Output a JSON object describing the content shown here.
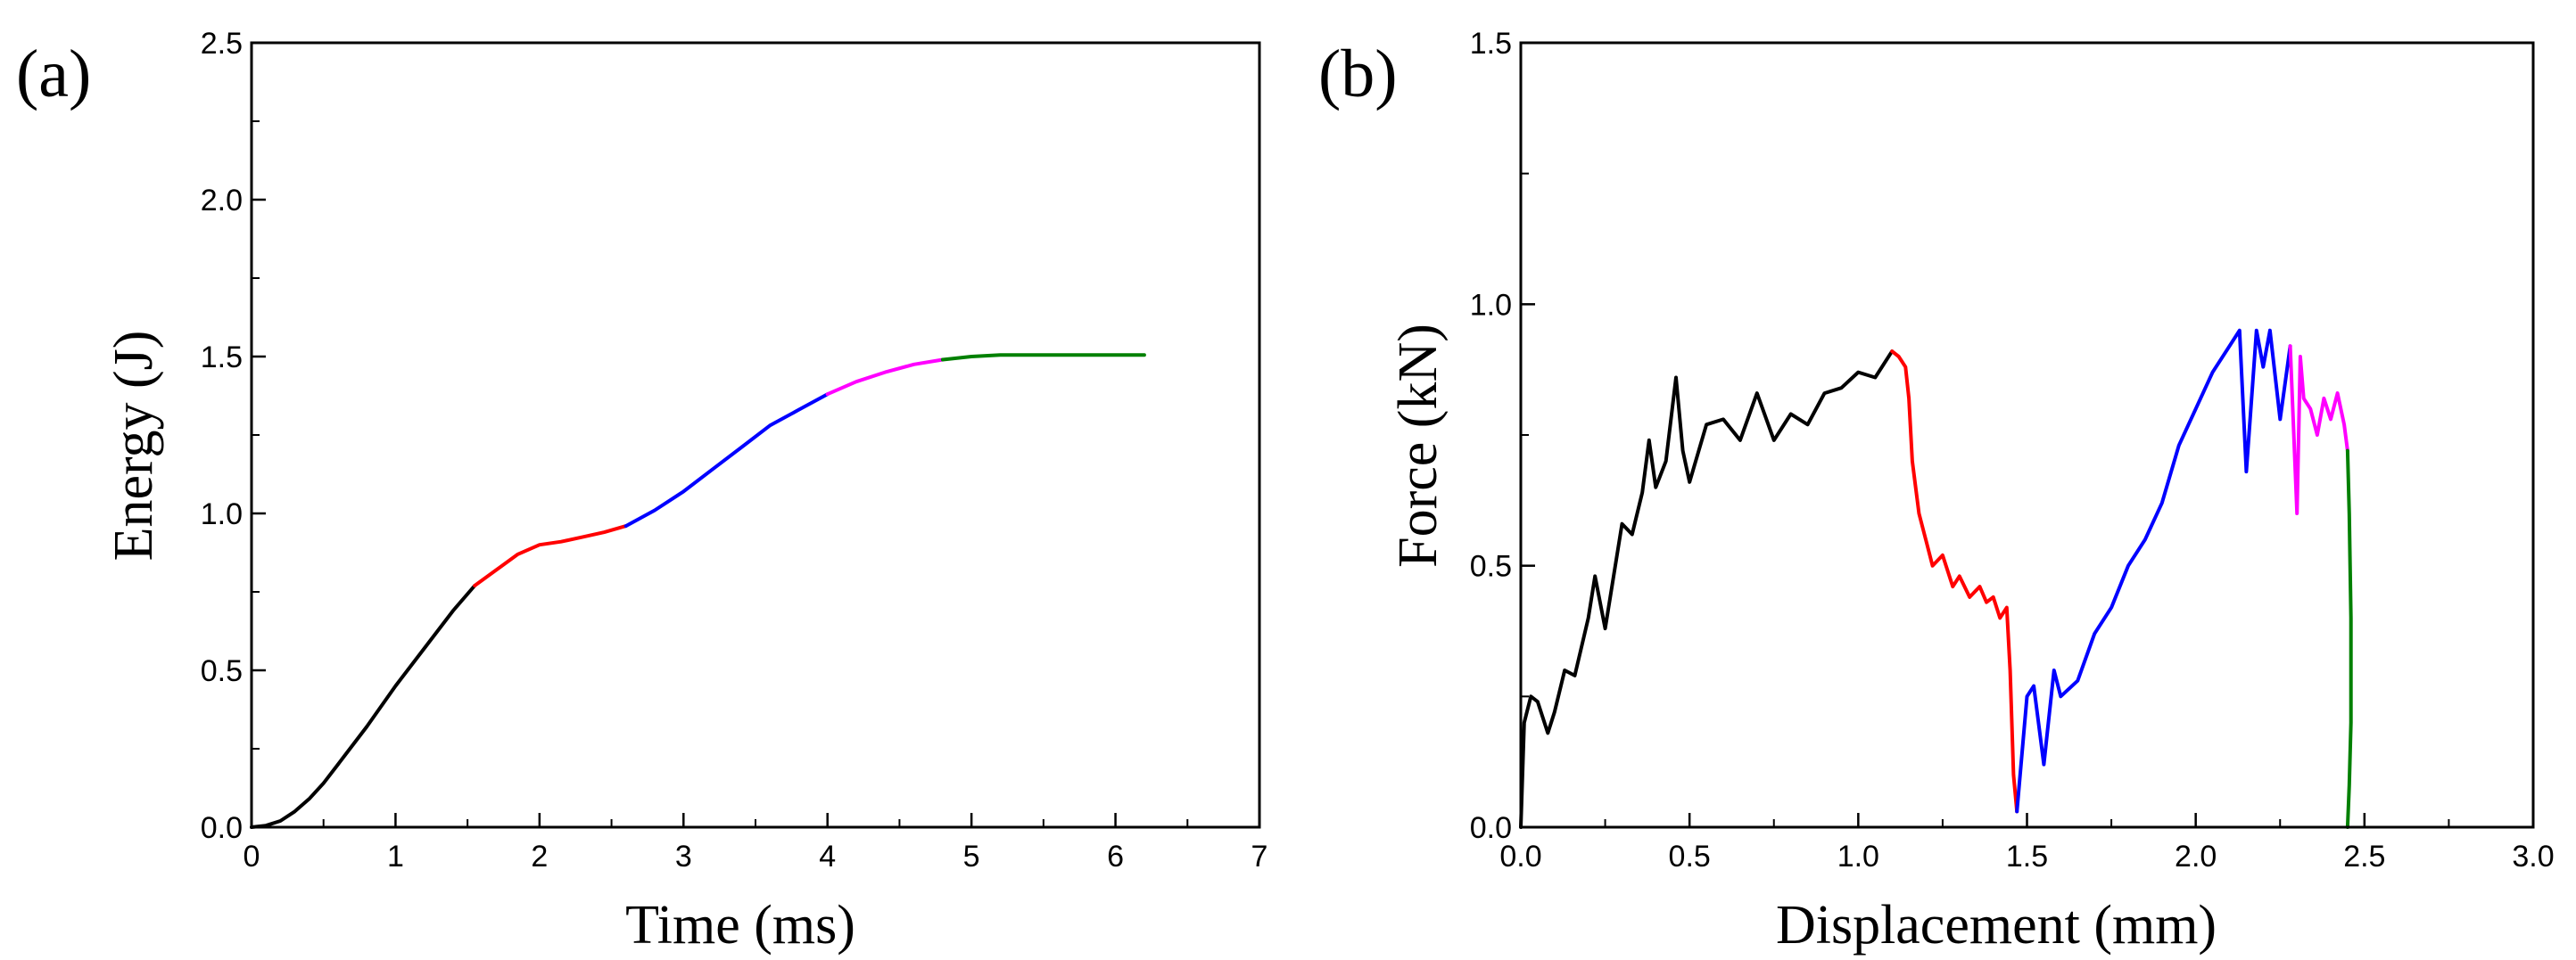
{
  "chart_data": [
    {
      "panel_label": "(a)",
      "type": "line",
      "xlabel": "Time (ms)",
      "ylabel": "Energy (J)",
      "xlim": [
        0,
        7
      ],
      "ylim": [
        0,
        2.5
      ],
      "x_ticks": [
        "0",
        "1",
        "2",
        "3",
        "4",
        "5",
        "6",
        "7"
      ],
      "y_ticks": [
        "0.0",
        "0.5",
        "1.0",
        "1.5",
        "2.0",
        "2.5"
      ],
      "grid": false,
      "segments": [
        {
          "color": "#000000",
          "x": [
            0,
            0.1,
            0.2,
            0.3,
            0.4,
            0.5,
            0.6,
            0.8,
            1.0,
            1.2,
            1.4,
            1.55
          ],
          "y": [
            0,
            0.005,
            0.02,
            0.05,
            0.09,
            0.14,
            0.2,
            0.32,
            0.45,
            0.57,
            0.69,
            0.77
          ]
        },
        {
          "color": "#ff0000",
          "x": [
            1.55,
            1.7,
            1.85,
            2.0,
            2.15,
            2.3,
            2.45,
            2.6
          ],
          "y": [
            0.77,
            0.82,
            0.87,
            0.9,
            0.91,
            0.925,
            0.94,
            0.96
          ]
        },
        {
          "color": "#0000ff",
          "x": [
            2.6,
            2.8,
            3.0,
            3.2,
            3.4,
            3.6,
            3.8,
            4.0
          ],
          "y": [
            0.96,
            1.01,
            1.07,
            1.14,
            1.21,
            1.28,
            1.33,
            1.38
          ]
        },
        {
          "color": "#ff00ff",
          "x": [
            4.0,
            4.2,
            4.4,
            4.6,
            4.8
          ],
          "y": [
            1.38,
            1.42,
            1.45,
            1.475,
            1.49
          ]
        },
        {
          "color": "#008000",
          "x": [
            4.8,
            5.0,
            5.2,
            5.5,
            6.0,
            6.2
          ],
          "y": [
            1.49,
            1.5,
            1.505,
            1.505,
            1.505,
            1.505
          ]
        }
      ]
    },
    {
      "panel_label": "(b)",
      "type": "line",
      "xlabel": "Displacement (mm)",
      "ylabel": "Force (kN)",
      "xlim": [
        0,
        3
      ],
      "ylim": [
        0,
        1.5
      ],
      "x_ticks": [
        "0.0",
        "0.5",
        "1.0",
        "1.5",
        "2.0",
        "2.5",
        "3.0"
      ],
      "y_ticks": [
        "0.0",
        "0.5",
        "1.0",
        "1.5"
      ],
      "grid": false,
      "segments": [
        {
          "color": "#000000",
          "x": [
            0.0,
            0.01,
            0.03,
            0.05,
            0.08,
            0.1,
            0.13,
            0.16,
            0.2,
            0.22,
            0.25,
            0.3,
            0.33,
            0.36,
            0.38,
            0.4,
            0.43,
            0.46,
            0.48,
            0.5,
            0.55,
            0.6,
            0.65,
            0.7,
            0.75,
            0.8,
            0.85,
            0.9,
            0.95,
            1.0,
            1.05,
            1.1
          ],
          "y": [
            0.0,
            0.2,
            0.25,
            0.24,
            0.18,
            0.22,
            0.3,
            0.29,
            0.4,
            0.48,
            0.38,
            0.58,
            0.56,
            0.64,
            0.74,
            0.65,
            0.7,
            0.86,
            0.72,
            0.66,
            0.77,
            0.78,
            0.74,
            0.83,
            0.74,
            0.79,
            0.77,
            0.83,
            0.84,
            0.87,
            0.86,
            0.91
          ]
        },
        {
          "color": "#ff0000",
          "x": [
            1.1,
            1.12,
            1.14,
            1.15,
            1.16,
            1.18,
            1.2,
            1.22,
            1.25,
            1.28,
            1.3,
            1.33,
            1.36,
            1.38,
            1.4,
            1.42,
            1.44,
            1.45,
            1.46,
            1.47
          ],
          "y": [
            0.91,
            0.9,
            0.88,
            0.82,
            0.7,
            0.6,
            0.55,
            0.5,
            0.52,
            0.46,
            0.48,
            0.44,
            0.46,
            0.43,
            0.44,
            0.4,
            0.42,
            0.3,
            0.1,
            0.03
          ]
        },
        {
          "color": "#0000ff",
          "x": [
            1.47,
            1.5,
            1.52,
            1.55,
            1.58,
            1.6,
            1.65,
            1.7,
            1.75,
            1.8,
            1.85,
            1.9,
            1.95,
            2.0,
            2.05,
            2.1,
            2.13,
            2.15,
            2.18,
            2.2,
            2.22,
            2.25,
            2.28
          ],
          "y": [
            0.03,
            0.25,
            0.27,
            0.12,
            0.3,
            0.25,
            0.28,
            0.37,
            0.42,
            0.5,
            0.55,
            0.62,
            0.73,
            0.8,
            0.87,
            0.92,
            0.95,
            0.68,
            0.95,
            0.88,
            0.95,
            0.78,
            0.92
          ]
        },
        {
          "color": "#ff00ff",
          "x": [
            2.28,
            2.3,
            2.31,
            2.32,
            2.34,
            2.36,
            2.38,
            2.4,
            2.42,
            2.44,
            2.45
          ],
          "y": [
            0.92,
            0.6,
            0.9,
            0.82,
            0.8,
            0.75,
            0.82,
            0.78,
            0.83,
            0.77,
            0.72
          ]
        },
        {
          "color": "#008000",
          "x": [
            2.45,
            2.455,
            2.46,
            2.46,
            2.455,
            2.45
          ],
          "y": [
            0.72,
            0.6,
            0.4,
            0.2,
            0.08,
            0.0
          ]
        }
      ]
    }
  ]
}
